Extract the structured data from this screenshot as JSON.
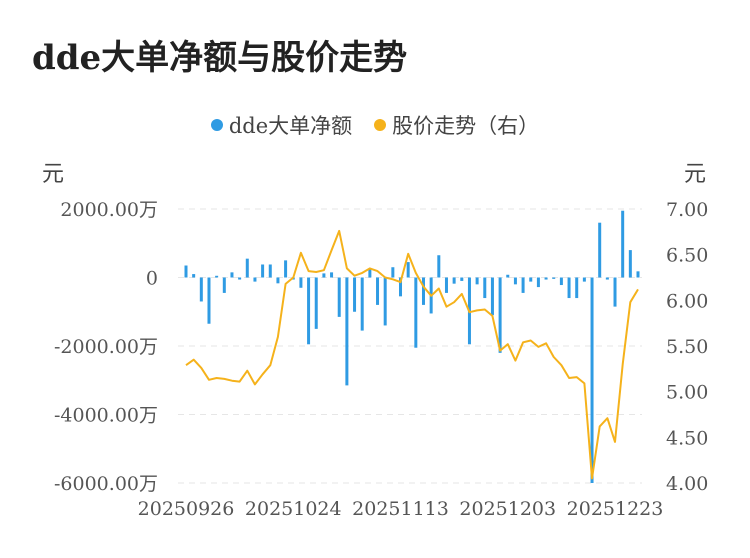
{
  "title": "dde大单净额与股价走势",
  "legend": [
    {
      "label": "dde大单净额",
      "color": "#2f9be3"
    },
    {
      "label": "股价走势（右）",
      "color": "#f5b21b"
    }
  ],
  "left_unit": "元",
  "right_unit": "元",
  "chart_data": {
    "type": "bar+line",
    "title": "dde大单净额与股价走势",
    "x_tick_labels": [
      "20250926",
      "20251024",
      "20251113",
      "20251203",
      "20251223"
    ],
    "x_tick_index": [
      0,
      14,
      28,
      42,
      56
    ],
    "y_left": {
      "ticks": [
        2000,
        0,
        -2000,
        -4000,
        -6000
      ],
      "tick_labels": [
        "2000.00万",
        "0",
        "-2000.00万",
        "-4000.00万",
        "-6000.00万"
      ],
      "range": [
        -6000,
        2000
      ],
      "unit": "万元"
    },
    "y_right": {
      "ticks": [
        7.0,
        6.5,
        6.0,
        5.5,
        5.0,
        4.5,
        4.0
      ],
      "tick_labels": [
        "7.00",
        "6.50",
        "6.00",
        "5.50",
        "5.00",
        "4.50",
        "4.00"
      ],
      "range": [
        4.0,
        7.0
      ]
    },
    "grid": true,
    "series": [
      {
        "name": "dde大单净额",
        "type": "bar",
        "color": "#2f9be3",
        "axis": "left",
        "values": [
          350,
          100,
          -700,
          -1350,
          50,
          -450,
          150,
          -60,
          550,
          -120,
          380,
          380,
          -170,
          500,
          -60,
          -300,
          -1950,
          -1500,
          120,
          150,
          -1150,
          -3150,
          -1000,
          -1550,
          250,
          -800,
          -1400,
          300,
          -550,
          450,
          -2050,
          -800,
          -1050,
          650,
          -450,
          -180,
          -100,
          -1950,
          -200,
          -600,
          -1100,
          -2200,
          80,
          -200,
          -450,
          -120,
          -280,
          -60,
          -40,
          -220,
          -600,
          -600,
          -120,
          -6000,
          1600,
          -60,
          -850,
          1950,
          800,
          180
        ]
      },
      {
        "name": "股价走势（右）",
        "type": "line",
        "color": "#f5b21b",
        "axis": "right",
        "values": [
          5.29,
          5.35,
          5.26,
          5.13,
          5.15,
          5.14,
          5.12,
          5.11,
          5.23,
          5.08,
          5.19,
          5.29,
          5.6,
          6.18,
          6.25,
          6.52,
          6.32,
          6.31,
          6.33,
          6.55,
          6.76,
          6.35,
          6.27,
          6.3,
          6.35,
          6.32,
          6.25,
          6.23,
          6.2,
          6.51,
          6.3,
          6.15,
          6.05,
          6.13,
          5.93,
          5.98,
          6.07,
          5.87,
          5.89,
          5.9,
          5.83,
          5.45,
          5.52,
          5.34,
          5.54,
          5.56,
          5.49,
          5.53,
          5.38,
          5.29,
          5.15,
          5.16,
          5.09,
          4.05,
          4.62,
          4.71,
          4.45,
          5.3,
          5.98,
          6.12
        ]
      }
    ]
  }
}
